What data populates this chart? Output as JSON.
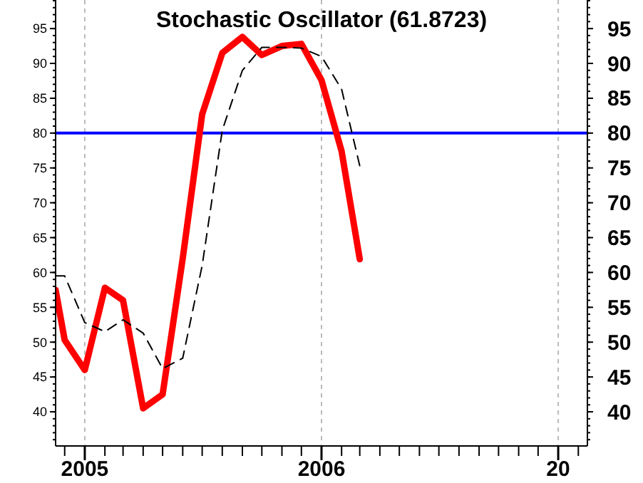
{
  "chart_data": {
    "type": "line",
    "title": "Stochastic Oscillator (61.8723)",
    "x": [
      "2004-11-17",
      "2004-12-01",
      "2005-01-01",
      "2005-02-01",
      "2005-03-01",
      "2005-04-01",
      "2005-05-01",
      "2005-06-01",
      "2005-07-01",
      "2005-08-01",
      "2005-09-01",
      "2005-10-01",
      "2005-11-01",
      "2005-12-01",
      "2006-01-01",
      "2006-02-01",
      "2006-03-01"
    ],
    "series": [
      {
        "color": "#ff0000",
        "line_style": "solid",
        "values": [
          57.5,
          50.3,
          46,
          57.8,
          56,
          40.5,
          42.5,
          62,
          82.7,
          91.5,
          93.8,
          91.2,
          92.5,
          92.8,
          87.6,
          77.4,
          61.9
        ]
      },
      {
        "color": "#000000",
        "line_style": "dashed",
        "values": [
          59.5,
          59.5,
          52.8,
          51.5,
          53.2,
          51.3,
          46.2,
          47.7,
          61,
          80.4,
          89,
          92.3,
          92.3,
          92.2,
          91,
          86.3,
          75.3
        ]
      }
    ],
    "xlim": [
      "2004-11-17",
      "2007-02-15"
    ],
    "xticks": [
      {
        "value": "2004-12-01",
        "label": null
      },
      {
        "value": "2005-01-01",
        "label": "2005"
      },
      {
        "value": "2005-02-01",
        "label": null
      },
      {
        "value": "2005-03-01",
        "label": null
      },
      {
        "value": "2005-04-01",
        "label": null
      },
      {
        "value": "2005-05-01",
        "label": null
      },
      {
        "value": "2005-06-01",
        "label": null
      },
      {
        "value": "2005-07-01",
        "label": null
      },
      {
        "value": "2005-08-01",
        "label": null
      },
      {
        "value": "2005-09-01",
        "label": null
      },
      {
        "value": "2005-10-01",
        "label": null
      },
      {
        "value": "2005-11-01",
        "label": null
      },
      {
        "value": "2005-12-01",
        "label": null
      },
      {
        "value": "2006-01-01",
        "label": "2006"
      },
      {
        "value": "2006-02-01",
        "label": null
      },
      {
        "value": "2006-03-01",
        "label": null
      },
      {
        "value": "2006-04-01",
        "label": null
      },
      {
        "value": "2006-05-01",
        "label": null
      },
      {
        "value": "2006-06-01",
        "label": null
      },
      {
        "value": "2006-07-01",
        "label": null
      },
      {
        "value": "2006-08-01",
        "label": null
      },
      {
        "value": "2006-09-01",
        "label": null
      },
      {
        "value": "2006-10-01",
        "label": null
      },
      {
        "value": "2006-11-01",
        "label": null
      },
      {
        "value": "2006-12-01",
        "label": null
      },
      {
        "value": "2007-01-01",
        "label": "20"
      },
      {
        "value": "2007-02-01",
        "label": null
      }
    ],
    "ylim": [
      35.1,
      99.1
    ],
    "yticks": [
      40,
      45,
      50,
      55,
      60,
      65,
      70,
      75,
      80,
      85,
      90,
      95
    ],
    "y2lim": [
      35.1,
      99.1
    ],
    "y2ticks": [
      40,
      45,
      50,
      55,
      60,
      65,
      70,
      75,
      80,
      85,
      90,
      95
    ],
    "ref_lines": [
      {
        "axis": "y",
        "value": 80,
        "color": "#0000ff"
      }
    ],
    "grid": "x",
    "marker": "none"
  }
}
